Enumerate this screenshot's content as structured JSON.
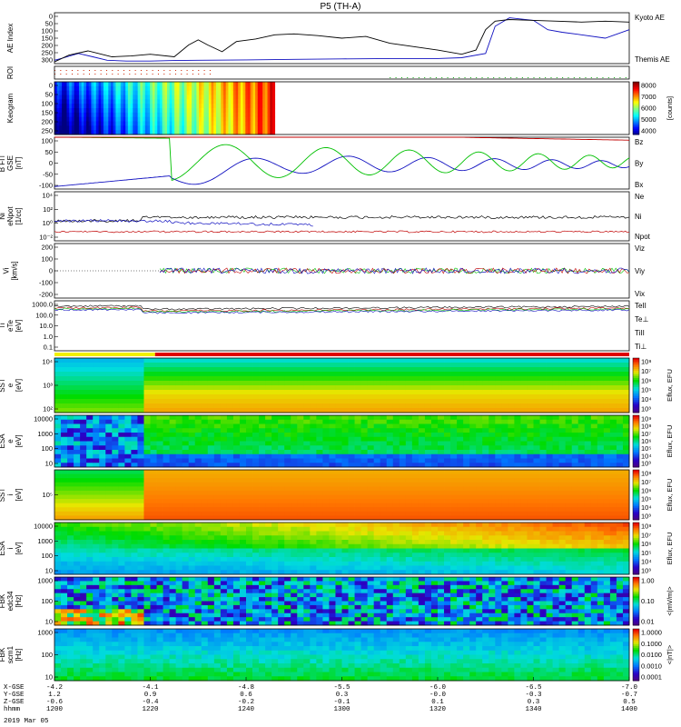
{
  "title": "P5 (TH-A)",
  "date": "2019 Mar 05",
  "time": {
    "start_min": 720,
    "end_min": 840
  },
  "colors": {
    "black": "#000000",
    "blue": "#1010c0",
    "red": "#c00000",
    "green": "#00c000",
    "roi": "#cc2200",
    "grey": "#666666"
  },
  "panels": [
    {
      "id": "ae",
      "kind": "line",
      "ylabel": [
        "AE Index"
      ],
      "ylim": [
        0,
        300
      ],
      "yticks": [
        "0",
        "50",
        "100",
        "150",
        "200",
        "250",
        "300"
      ],
      "legend": [
        {
          "text": "Kyoto AE",
          "color": "#1010c0"
        },
        {
          "text": "Themis AE",
          "color": "#000000"
        }
      ],
      "series": [
        {
          "name": "Kyoto AE",
          "color": "#1010c0",
          "x": [
            720,
            722,
            725,
            728,
            731,
            735,
            740,
            745,
            750,
            760,
            770,
            780,
            790,
            800,
            805,
            810,
            812,
            815,
            820,
            823,
            826,
            830,
            835,
            840
          ],
          "y": [
            20,
            35,
            60,
            40,
            20,
            15,
            15,
            18,
            20,
            22,
            25,
            28,
            30,
            30,
            35,
            60,
            220,
            270,
            255,
            200,
            185,
            170,
            150,
            200
          ]
        },
        {
          "name": "Themis AE",
          "color": "#000000",
          "x": [
            720,
            723,
            727,
            732,
            736,
            740,
            745,
            748,
            750,
            752,
            755,
            758,
            762,
            766,
            770,
            775,
            780,
            785,
            790,
            795,
            800,
            805,
            808,
            810,
            812,
            815,
            820,
            825,
            830,
            835,
            840
          ],
          "y": [
            10,
            50,
            75,
            40,
            45,
            55,
            40,
            110,
            140,
            110,
            70,
            130,
            145,
            170,
            175,
            165,
            150,
            160,
            120,
            100,
            80,
            55,
            80,
            200,
            250,
            260,
            255,
            250,
            245,
            250,
            245
          ]
        }
      ]
    },
    {
      "id": "roi",
      "kind": "dots",
      "ylabel": [
        "ROI"
      ],
      "rows": [
        {
          "color": "#cc2200",
          "x0": 720,
          "x1": 753
        },
        {
          "color": "#cc2200",
          "x0": 720,
          "x1": 753
        },
        {
          "color": "#00aa00",
          "x0": 790,
          "x1": 840
        }
      ]
    },
    {
      "id": "keogram",
      "kind": "spectro",
      "palette": "jet",
      "ylabel": [
        "Keogram"
      ],
      "yticks": [
        "0",
        "50",
        "100",
        "150",
        "200",
        "250"
      ],
      "x_extent": [
        720,
        766
      ],
      "cbar": {
        "ticks": [
          "8000",
          "7000",
          "6000",
          "5000",
          "4000"
        ],
        "label": "[counts]"
      }
    },
    {
      "id": "bfield",
      "kind": "line",
      "ylabel": [
        "B FIT",
        "GSE",
        "[nT]"
      ],
      "ylim": [
        -110,
        100
      ],
      "yticks": [
        "100",
        "50",
        "0",
        "-50",
        "-100"
      ],
      "legend": [
        {
          "text": "Bz",
          "color": "#c00000"
        },
        {
          "text": "By",
          "color": "#00c000"
        },
        {
          "text": "Bx",
          "color": "#1010c0"
        }
      ],
      "series": [
        {
          "name": "Bx",
          "color": "#1010c0",
          "kind": "bx"
        },
        {
          "name": "By",
          "color": "#00c000",
          "kind": "by"
        },
        {
          "name": "Bz",
          "color": "#c00000",
          "kind": "bz"
        }
      ]
    },
    {
      "id": "density",
      "kind": "line",
      "ylabel": [
        "Ni",
        "eNpot",
        "[1/cc]"
      ],
      "log": true,
      "yticks": [
        "10⁴",
        "10²",
        "10⁰",
        "10⁻²"
      ],
      "legend": [
        {
          "text": "Ne",
          "color": "#c00000"
        },
        {
          "text": "Ni",
          "color": "#000000"
        },
        {
          "text": "Npot",
          "color": "#1010c0"
        }
      ],
      "series": []
    },
    {
      "id": "velocity",
      "kind": "line",
      "ylabel": [
        "Vi",
        "[km/s]"
      ],
      "ylim": [
        -250,
        250
      ],
      "yticks": [
        "200",
        "100",
        "0",
        "-100",
        "-200"
      ],
      "legend": [
        {
          "text": "Viz",
          "color": "#c00000"
        },
        {
          "text": "Viy",
          "color": "#00c000"
        },
        {
          "text": "Vix",
          "color": "#1010c0"
        }
      ],
      "series": []
    },
    {
      "id": "temperature",
      "kind": "line",
      "ylabel": [
        "Ti",
        "eTe",
        "[eV]"
      ],
      "log": true,
      "yticks": [
        "1000.0",
        "100.0",
        "10.0",
        "1.0",
        "0.1"
      ],
      "legend": [
        {
          "text": "TeII",
          "color": "#000000"
        },
        {
          "text": "Te⊥",
          "color": "#c00000"
        },
        {
          "text": "TiII",
          "color": "#00c000"
        },
        {
          "text": "Ti⊥",
          "color": "#1010c0"
        }
      ],
      "series": []
    },
    {
      "id": "sst_e",
      "kind": "spectro",
      "palette": "sst",
      "ylabel": [
        "SST",
        "e",
        "[eV]"
      ],
      "yticks": [
        "10⁴",
        "10³",
        "10²"
      ],
      "cbar": {
        "ticks": [
          "10⁸",
          "10⁷",
          "10⁶",
          "10⁵",
          "10⁴",
          "10³"
        ],
        "label": "Eflux, EFU"
      }
    },
    {
      "id": "esa_e",
      "kind": "spectro",
      "palette": "esa_e",
      "ylabel": [
        "ESA",
        "e",
        "[eV]"
      ],
      "yticks": [
        "10000",
        "1000",
        "100",
        "10"
      ],
      "cbar": {
        "ticks": [
          "10⁹",
          "10⁸",
          "10⁷",
          "10⁶",
          "10⁵",
          "10⁴",
          "10³"
        ],
        "label": "Eflux, EFU"
      }
    },
    {
      "id": "sst_i",
      "kind": "spectro",
      "palette": "sst_i",
      "ylabel": [
        "SST",
        "i",
        "[eV]"
      ],
      "yticks": [
        "10⁵"
      ],
      "cbar": {
        "ticks": [
          "10⁸",
          "10⁷",
          "10⁶",
          "10⁵",
          "10⁴",
          "10³"
        ],
        "label": "Eflux, EFU"
      }
    },
    {
      "id": "esa_i",
      "kind": "spectro",
      "palette": "esa_i",
      "ylabel": [
        "ESA",
        "i",
        "[eV]"
      ],
      "yticks": [
        "10000",
        "1000",
        "100",
        "10"
      ],
      "cbar": {
        "ticks": [
          "10⁸",
          "10⁷",
          "10⁶",
          "10⁵",
          "10⁴",
          "10³"
        ],
        "label": "Eflux, EFU"
      }
    },
    {
      "id": "fbk_e",
      "kind": "spectro",
      "palette": "fbk_e",
      "ylabel": [
        "FBK",
        "edc34",
        "[Hz]"
      ],
      "yticks": [
        "1000",
        "100",
        "10"
      ],
      "cbar": {
        "ticks": [
          "1.00",
          "0.10",
          "0.01"
        ],
        "label": "<|mV/m|>"
      }
    },
    {
      "id": "fbk_b",
      "kind": "spectro",
      "palette": "fbk_b",
      "ylabel": [
        "FBK",
        "scm1",
        "[Hz]"
      ],
      "yticks": [
        "1000",
        "100",
        "10"
      ],
      "cbar": {
        "ticks": [
          "1.0000",
          "0.1000",
          "0.0100",
          "0.0010",
          "0.0001"
        ],
        "label": "<|nT|>"
      }
    }
  ],
  "xaxis": {
    "row_labels": [
      "X-GSE",
      "Y-GSE",
      "Z-GSE",
      "hhmm"
    ],
    "columns": [
      {
        "t": 720,
        "vals": [
          "-4.2",
          "1.2",
          "-0.6",
          "1200"
        ]
      },
      {
        "t": 740,
        "vals": [
          "-4.1",
          "0.9",
          "-0.4",
          "1220"
        ]
      },
      {
        "t": 760,
        "vals": [
          "-4.8",
          "0.6",
          "-0.2",
          "1240"
        ]
      },
      {
        "t": 780,
        "vals": [
          "-5.5",
          "0.3",
          "-0.1",
          "1300"
        ]
      },
      {
        "t": 800,
        "vals": [
          "-6.0",
          "-0.0",
          "0.1",
          "1320"
        ]
      },
      {
        "t": 820,
        "vals": [
          "-6.5",
          "-0.3",
          "0.3",
          "1340"
        ]
      },
      {
        "t": 840,
        "vals": [
          "-7.0",
          "-0.7",
          "0.5",
          "1400"
        ]
      }
    ]
  }
}
